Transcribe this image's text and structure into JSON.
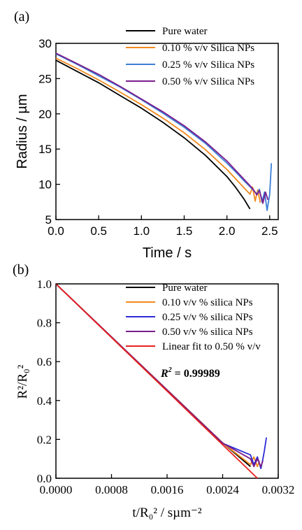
{
  "chart_data": [
    {
      "panel_label": "(a)",
      "type": "line",
      "xlabel": "Time / s",
      "ylabel": "Radius / µm",
      "xlim": [
        0,
        2.6
      ],
      "ylim": [
        5,
        30
      ],
      "xticks": [
        "0.0",
        "0.5",
        "1.0",
        "1.5",
        "2.0",
        "2.5"
      ],
      "xtick_values": [
        0,
        0.5,
        1.0,
        1.5,
        2.0,
        2.5
      ],
      "yticks": [
        "5",
        "10",
        "15",
        "20",
        "25",
        "30"
      ],
      "ytick_values": [
        5,
        10,
        15,
        20,
        25,
        30
      ],
      "legend_position": "top-right",
      "series": [
        {
          "name": "Pure water",
          "color": "#000000",
          "x": [
            0,
            0.25,
            0.5,
            0.75,
            1.0,
            1.25,
            1.5,
            1.75,
            2.0,
            2.1,
            2.2,
            2.27
          ],
          "y": [
            27.6,
            26.0,
            24.4,
            22.6,
            20.8,
            18.8,
            16.6,
            14.1,
            11.1,
            9.6,
            7.9,
            6.5
          ]
        },
        {
          "name": "0.10 % v/v Silica NPs",
          "color": "#f28a1e",
          "x": [
            0,
            0.25,
            0.5,
            0.75,
            1.0,
            1.25,
            1.5,
            1.75,
            2.0,
            2.1,
            2.2,
            2.27,
            2.3,
            2.33,
            2.36,
            2.39
          ],
          "y": [
            27.9,
            26.4,
            24.8,
            23.1,
            21.3,
            19.4,
            17.3,
            14.9,
            12.1,
            10.8,
            9.5,
            8.6,
            9.6,
            7.6,
            9.2,
            7.4
          ]
        },
        {
          "name": "0.25 % v/v Silica NPs",
          "color": "#3b7fd6",
          "x": [
            0,
            0.25,
            0.5,
            0.75,
            1.0,
            1.25,
            1.5,
            1.75,
            2.0,
            2.1,
            2.2,
            2.3,
            2.35,
            2.38,
            2.41,
            2.44,
            2.47,
            2.5,
            2.52
          ],
          "y": [
            28.5,
            27.0,
            25.4,
            23.8,
            22.0,
            20.1,
            18.1,
            15.8,
            13.0,
            11.8,
            10.5,
            9.3,
            8.6,
            9.3,
            7.5,
            8.9,
            6.3,
            8.6,
            13.0
          ]
        },
        {
          "name": "0.50 % v/v Silica NPs",
          "color": "#7a1d8c",
          "x": [
            0,
            0.25,
            0.5,
            0.75,
            1.0,
            1.25,
            1.5,
            1.75,
            2.0,
            2.1,
            2.2,
            2.3,
            2.35,
            2.38,
            2.42,
            2.45,
            2.48
          ],
          "y": [
            28.6,
            27.1,
            25.6,
            23.9,
            22.1,
            20.3,
            18.3,
            16.0,
            13.3,
            12.0,
            10.7,
            9.4,
            8.5,
            9.1,
            7.3,
            8.9,
            7.8
          ]
        }
      ]
    },
    {
      "panel_label": "(b)",
      "type": "line",
      "xlabel": "t/R₀² / sµm⁻²",
      "ylabel": "R²/R₀²",
      "xlim": [
        0,
        0.0032
      ],
      "ylim": [
        0,
        1.0
      ],
      "xticks": [
        "0.0000",
        "0.0008",
        "0.0016",
        "0.0024",
        "0.0032"
      ],
      "xtick_values": [
        0,
        0.0008,
        0.0016,
        0.0024,
        0.0032
      ],
      "yticks": [
        "0.0",
        "0.2",
        "0.4",
        "0.6",
        "0.8",
        "1.0"
      ],
      "ytick_values": [
        0,
        0.2,
        0.4,
        0.6,
        0.8,
        1.0
      ],
      "legend_position": "top-right",
      "annotation": {
        "prefix": "R",
        "sup": "2",
        "suffix": " = 0.99989"
      },
      "series": [
        {
          "name": "Pure water",
          "color": "#000000",
          "x": [
            0,
            0.0008,
            0.0016,
            0.0024,
            0.0028
          ],
          "y": [
            1.0,
            0.727,
            0.455,
            0.182,
            0.06
          ]
        },
        {
          "name": "0.10 v/v % silica NPs",
          "color": "#f28a1e",
          "x": [
            0,
            0.0008,
            0.0016,
            0.0024,
            0.0028,
            0.00285,
            0.0029,
            0.00293
          ],
          "y": [
            1.0,
            0.727,
            0.455,
            0.182,
            0.07,
            0.11,
            0.06,
            0.09
          ]
        },
        {
          "name": "0.25 v/v % silica NPs",
          "color": "#2b2bd6",
          "x": [
            0,
            0.0008,
            0.0016,
            0.0024,
            0.0028,
            0.00285,
            0.0029,
            0.00295,
            0.00298,
            0.003,
            0.00303
          ],
          "y": [
            1.0,
            0.725,
            0.452,
            0.18,
            0.12,
            0.07,
            0.11,
            0.05,
            0.1,
            0.14,
            0.21
          ]
        },
        {
          "name": "0.50 v/v % silica NPs",
          "color": "#7a1d8c",
          "x": [
            0,
            0.0008,
            0.0016,
            0.0024,
            0.0028,
            0.00285,
            0.0029,
            0.00295,
            0.00298
          ],
          "y": [
            1.0,
            0.727,
            0.454,
            0.181,
            0.1,
            0.06,
            0.1,
            0.06,
            0.09
          ]
        },
        {
          "name": "Linear fit to 0.50 % v/v",
          "color": "#e8201c",
          "x": [
            0,
            0.0029
          ],
          "y": [
            1.0,
            0.0
          ]
        }
      ]
    }
  ]
}
